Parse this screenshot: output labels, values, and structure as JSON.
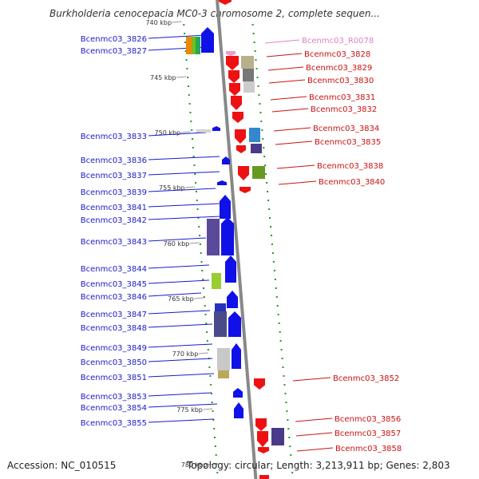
{
  "title": "Burkholderia cenocepacia MC0-3 chromosome 2, complete sequen...",
  "footer": {
    "accession": "Accession: NC_010515",
    "summary": "Topology: circular; Length: 3,213,911 bp; Genes: 2,803"
  },
  "ruler": [
    {
      "label": "740 kbp",
      "kbp": 740
    },
    {
      "label": "745 kbp",
      "kbp": 745
    },
    {
      "label": "750 kbp",
      "kbp": 750
    },
    {
      "label": "755 kbp",
      "kbp": 755
    },
    {
      "label": "760 kbp",
      "kbp": 760
    },
    {
      "label": "765 kbp",
      "kbp": 765
    },
    {
      "label": "770 kbp",
      "kbp": 770
    },
    {
      "label": "775 kbp",
      "kbp": 775
    },
    {
      "label": "780 kbp",
      "kbp": 780
    }
  ],
  "colors": {
    "forward": "#1010e8",
    "reverse": "#ee1111",
    "rna": "#ee99cc",
    "backbone": "#888888",
    "ticks": "#229922",
    "forward_label": "#1a1acc",
    "reverse_label": "#cc1111",
    "rna_label": "#e080c0"
  },
  "forward_genes": [
    "Bcenmc03_3826",
    "Bcenmc03_3827",
    "Bcenmc03_3833",
    "Bcenmc03_3836",
    "Bcenmc03_3837",
    "Bcenmc03_3839",
    "Bcenmc03_3841",
    "Bcenmc03_3842",
    "Bcenmc03_3843",
    "Bcenmc03_3844",
    "Bcenmc03_3845",
    "Bcenmc03_3846",
    "Bcenmc03_3847",
    "Bcenmc03_3848",
    "Bcenmc03_3849",
    "Bcenmc03_3850",
    "Bcenmc03_3851",
    "Bcenmc03_3853",
    "Bcenmc03_3854",
    "Bcenmc03_3855"
  ],
  "reverse_genes": [
    "Bcenmc03_R0078",
    "Bcenmc03_3828",
    "Bcenmc03_3829",
    "Bcenmc03_3830",
    "Bcenmc03_3831",
    "Bcenmc03_3832",
    "Bcenmc03_3834",
    "Bcenmc03_3835",
    "Bcenmc03_3838",
    "Bcenmc03_3840",
    "Bcenmc03_3852",
    "Bcenmc03_3856",
    "Bcenmc03_3857",
    "Bcenmc03_3858"
  ]
}
